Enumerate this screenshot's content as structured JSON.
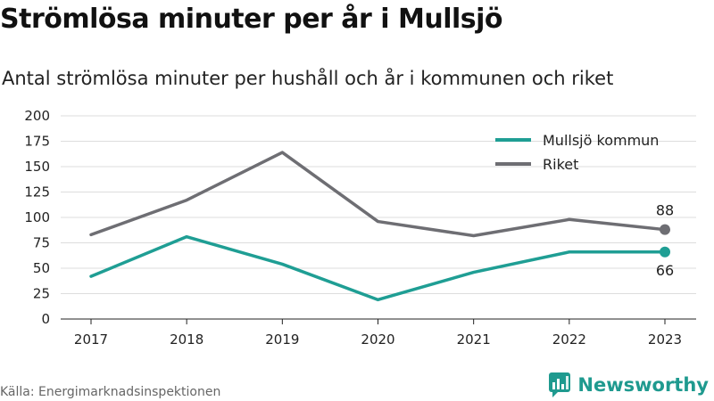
{
  "title": "Strömlösa minuter per år i Mullsjö",
  "subtitle": "Antal strömlösa minuter per hushåll och år i kommunen och riket",
  "source": "Källa: Energimarknadsinspektionen",
  "brand": "Newsworthy",
  "chart_data": {
    "type": "line",
    "x": [
      "2017",
      "2018",
      "2019",
      "2020",
      "2021",
      "2022",
      "2023"
    ],
    "ylim": [
      0,
      200
    ],
    "yticks": [
      0,
      25,
      50,
      75,
      100,
      125,
      150,
      175,
      200
    ],
    "grid": true,
    "legend_position": "top-right",
    "series": [
      {
        "name": "Mullsjö kommun",
        "color": "#1f9e94",
        "values": [
          42,
          81,
          54,
          19,
          46,
          66,
          66
        ],
        "end_label": "66"
      },
      {
        "name": "Riket",
        "color": "#6e6e73",
        "values": [
          83,
          117,
          164,
          96,
          82,
          98,
          88
        ],
        "end_label": "88"
      }
    ]
  }
}
